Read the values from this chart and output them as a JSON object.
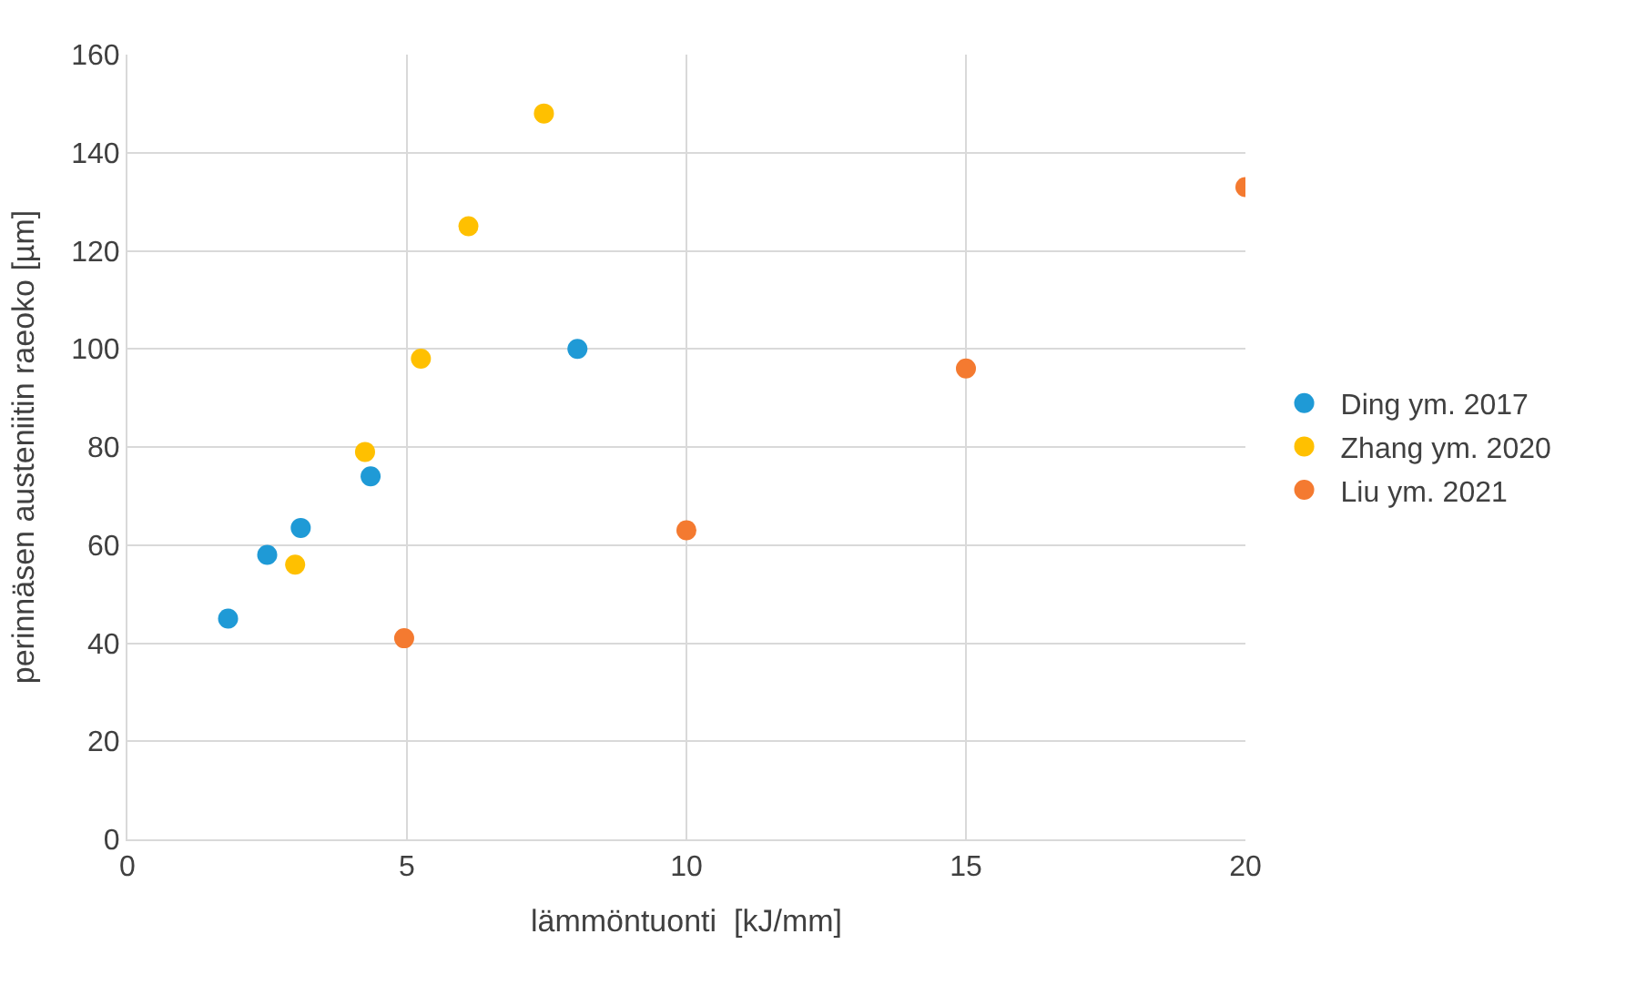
{
  "chart_data": {
    "type": "scatter",
    "xlabel": "lämmöntuonti  [kJ/mm]",
    "ylabel": "perinnäsen austeniitin raeoko [µm]",
    "xlim": [
      0,
      20
    ],
    "xticks": [
      0,
      5,
      10,
      15,
      20
    ],
    "ylim": [
      0,
      160
    ],
    "yticks": [
      0,
      20,
      40,
      60,
      80,
      100,
      120,
      140,
      160
    ],
    "grid": true,
    "legend": "right",
    "marker": "circle",
    "series": [
      {
        "name": "Ding ym. 2017",
        "color": "#1f9ad6",
        "x": [
          1.8,
          2.5,
          3.1,
          4.35,
          8.05
        ],
        "values": [
          45,
          58,
          63.5,
          74,
          100
        ]
      },
      {
        "name": "Zhang ym. 2020",
        "color": "#ffc000",
        "x": [
          3.0,
          4.25,
          5.25,
          6.1,
          7.45
        ],
        "values": [
          56,
          79,
          98,
          125,
          148
        ]
      },
      {
        "name": "Liu ym. 2021",
        "color": "#f47a30",
        "x": [
          4.95,
          10,
          15,
          20
        ],
        "values": [
          41,
          63,
          96,
          133
        ]
      }
    ]
  }
}
